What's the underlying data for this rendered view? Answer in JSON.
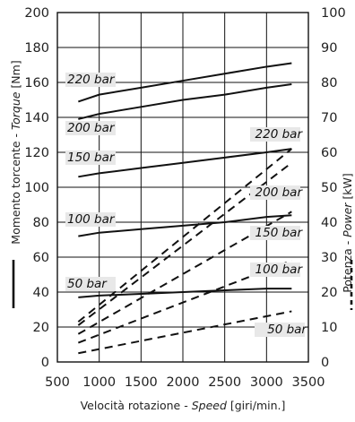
{
  "chart_data": {
    "type": "line",
    "xlabel": {
      "main": "Velocità rotazione - ",
      "italic": "Speed",
      "unit": " [giri/min.]"
    },
    "ylabel_left": {
      "main": "Momento torcente - ",
      "italic": "Torque",
      "unit": " [Nm]"
    },
    "ylabel_right": {
      "main": "Potenza - ",
      "italic": "Power",
      "unit": " [kW]"
    },
    "x_ticks": [
      "500",
      "1000",
      "1500",
      "2000",
      "2500",
      "3000",
      "3500"
    ],
    "y_left_ticks": [
      "0",
      "20",
      "40",
      "60",
      "80",
      "100",
      "120",
      "140",
      "160",
      "180",
      "200"
    ],
    "y_right_ticks": [
      "0",
      "10",
      "20",
      "30",
      "40",
      "50",
      "60",
      "70",
      "80",
      "90",
      "100"
    ],
    "xlim": [
      500,
      3500
    ],
    "ylim_left": [
      0,
      200
    ],
    "ylim_right": [
      0,
      100
    ],
    "grid": true,
    "torque_series": [
      {
        "name": "220 bar",
        "x": [
          750,
          1000,
          1500,
          2000,
          2500,
          3000,
          3300
        ],
        "y": [
          149,
          153,
          157,
          161,
          165,
          169,
          171
        ]
      },
      {
        "name": "200 bar",
        "x": [
          750,
          1000,
          1500,
          2000,
          2500,
          3000,
          3300
        ],
        "y": [
          139,
          142,
          146,
          150,
          153,
          157,
          159
        ]
      },
      {
        "name": "150 bar",
        "x": [
          750,
          1000,
          1500,
          2000,
          2500,
          3000,
          3300
        ],
        "y": [
          106,
          108,
          111,
          114,
          117,
          120,
          122
        ]
      },
      {
        "name": "100 bar",
        "x": [
          750,
          1000,
          1500,
          2000,
          2500,
          3000,
          3300
        ],
        "y": [
          72,
          74,
          76,
          78,
          80,
          83,
          84
        ]
      },
      {
        "name": "50 bar",
        "x": [
          750,
          1000,
          1500,
          2000,
          2500,
          3000,
          3300
        ],
        "y": [
          37,
          38,
          39,
          40,
          41,
          42,
          42
        ]
      }
    ],
    "power_series": [
      {
        "name": "220 bar",
        "x": [
          750,
          3300
        ],
        "y": [
          11.5,
          61
        ]
      },
      {
        "name": "200 bar",
        "x": [
          750,
          3300
        ],
        "y": [
          10.5,
          57
        ]
      },
      {
        "name": "150 bar",
        "x": [
          750,
          3300
        ],
        "y": [
          8,
          43
        ]
      },
      {
        "name": "100 bar",
        "x": [
          750,
          3300
        ],
        "y": [
          5.5,
          29
        ]
      },
      {
        "name": "50 bar",
        "x": [
          750,
          3300
        ],
        "y": [
          2.5,
          14.5
        ]
      }
    ],
    "torque_labels": [
      "220 bar",
      "200 bar",
      "150 bar",
      "100 bar",
      "50 bar"
    ],
    "power_labels": [
      "220 bar",
      "200 bar",
      "150 bar",
      "100 bar",
      "50 bar"
    ],
    "legend": {
      "torque": "solid line",
      "power": "dashed line"
    }
  }
}
